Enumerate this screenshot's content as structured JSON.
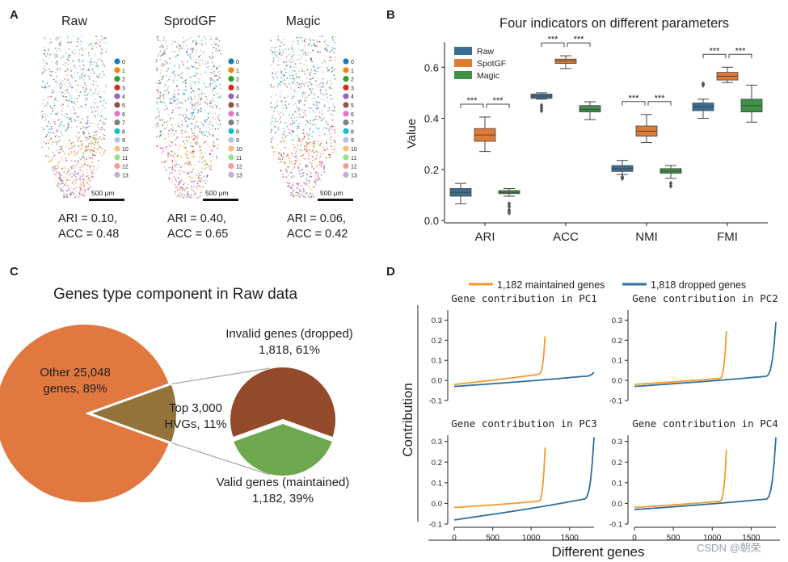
{
  "panels": {
    "A": {
      "letter": "A",
      "images": [
        {
          "title": "Raw",
          "metrics": "ARI = 0.10,\nACC = 0.48",
          "scalebar": "500 μm"
        },
        {
          "title": "SprodGF",
          "metrics": "ARI = 0.40,\nACC = 0.65",
          "scalebar": "500 μm"
        },
        {
          "title": "Magic",
          "metrics": "ARI = 0.06,\nACC = 0.42",
          "scalebar": "500 μm"
        }
      ],
      "cluster_labels": [
        "0",
        "1",
        "2",
        "3",
        "4",
        "5",
        "6",
        "7",
        "8",
        "9",
        "10",
        "11",
        "12",
        "13"
      ],
      "cluster_colors": [
        "#1f77b4",
        "#ff7f0e",
        "#2ca02c",
        "#d62728",
        "#9467bd",
        "#8c564b",
        "#e377c2",
        "#7f7f7f",
        "#17becf",
        "#aec7e8",
        "#ffbb78",
        "#98df8a",
        "#ff9896",
        "#c5b0d5"
      ]
    },
    "B": {
      "letter": "B"
    },
    "C": {
      "letter": "C",
      "title": "Genes type component in Raw data",
      "left_label": "Other 25,048\ngenes, 89%",
      "mid_label": "Top 3,000\nHVGs, 11%",
      "invalid_label": "Invalid genes (dropped)\n1,818, 61%",
      "valid_label": "Valid genes (maintained)\n1,182, 39%"
    },
    "D": {
      "letter": "D",
      "legend": [
        "1,182 maintained genes",
        "1,818 dropped genes"
      ],
      "ylabel": "Contribution",
      "xlabel": "Different genes",
      "subtitles": [
        "Gene contribution in PC1",
        "Gene contribution in PC2",
        "Gene contribution in PC3",
        "Gene contribution in PC4"
      ]
    }
  },
  "watermark": "CSDN @朝荣",
  "chart_data": [
    {
      "type": "box",
      "title": "Four indicators on different parameters",
      "ylabel": "Value",
      "categories": [
        "ARI",
        "ACC",
        "NMI",
        "FMI"
      ],
      "yticks": [
        0.0,
        0.2,
        0.4,
        0.6
      ],
      "ylim": [
        0.0,
        0.68
      ],
      "legend": {
        "position": "top-left"
      },
      "series": [
        {
          "name": "Raw",
          "color": "#3a6f95",
          "boxes": [
            {
              "min": 0.065,
              "q1": 0.095,
              "median": 0.11,
              "q3": 0.125,
              "max": 0.145,
              "outliers": []
            },
            {
              "min": 0.475,
              "q1": 0.478,
              "median": 0.487,
              "q3": 0.495,
              "max": 0.5,
              "outliers": [
                0.43,
                0.44,
                0.45
              ]
            },
            {
              "min": 0.18,
              "q1": 0.192,
              "median": 0.203,
              "q3": 0.215,
              "max": 0.235,
              "outliers": [
                0.165,
                0.17
              ]
            },
            {
              "min": 0.4,
              "q1": 0.43,
              "median": 0.445,
              "q3": 0.46,
              "max": 0.475,
              "outliers": [
                0.53,
                0.535
              ]
            }
          ]
        },
        {
          "name": "SpotGF",
          "color": "#e07b35",
          "boxes": [
            {
              "min": 0.27,
              "q1": 0.31,
              "median": 0.335,
              "q3": 0.36,
              "max": 0.405,
              "outliers": []
            },
            {
              "min": 0.595,
              "q1": 0.615,
              "median": 0.625,
              "q3": 0.632,
              "max": 0.645,
              "outliers": []
            },
            {
              "min": 0.305,
              "q1": 0.33,
              "median": 0.35,
              "q3": 0.37,
              "max": 0.415,
              "outliers": []
            },
            {
              "min": 0.54,
              "q1": 0.55,
              "median": 0.565,
              "q3": 0.58,
              "max": 0.6,
              "outliers": []
            }
          ]
        },
        {
          "name": "Magic",
          "color": "#3d9245",
          "boxes": [
            {
              "min": 0.095,
              "q1": 0.105,
              "median": 0.11,
              "q3": 0.117,
              "max": 0.125,
              "outliers": [
                0.03,
                0.04,
                0.055,
                0.065
              ]
            },
            {
              "min": 0.395,
              "q1": 0.425,
              "median": 0.435,
              "q3": 0.45,
              "max": 0.465,
              "outliers": []
            },
            {
              "min": 0.165,
              "q1": 0.185,
              "median": 0.193,
              "q3": 0.203,
              "max": 0.215,
              "outliers": [
                0.135,
                0.145
              ]
            },
            {
              "min": 0.385,
              "q1": 0.425,
              "median": 0.45,
              "q3": 0.475,
              "max": 0.53,
              "outliers": []
            }
          ]
        }
      ],
      "annotations": [
        "***",
        "***"
      ]
    },
    {
      "type": "pie",
      "title": "Genes type component in Raw data",
      "slices": [
        {
          "label": "Other 25,048 genes",
          "value": 89,
          "color": "#e07840"
        },
        {
          "label": "Top 3,000 HVGs",
          "value": 11,
          "color": "#93733a"
        }
      ]
    },
    {
      "type": "pie",
      "slices": [
        {
          "label": "Invalid genes (dropped)",
          "value": 61,
          "color": "#924a2a"
        },
        {
          "label": "Valid genes (maintained)",
          "value": 39,
          "color": "#6da84e"
        }
      ]
    },
    {
      "type": "line",
      "title": "Gene contribution in PC1",
      "ylim": [
        -0.1,
        0.35
      ],
      "yticks": [
        -0.1,
        0.0,
        0.1,
        0.2,
        0.3
      ],
      "yticklabels": [
        "-0.1",
        "0.0",
        "0.1",
        "0.2",
        "0.3"
      ],
      "xlim": [
        0,
        1818
      ],
      "series": [
        {
          "name": "1,182 maintained genes",
          "color": "#f39a2c",
          "n": 1182,
          "start": -0.02,
          "end": 0.22,
          "bend": 0.03
        },
        {
          "name": "1,818 dropped genes",
          "color": "#2f6f9f",
          "n": 1818,
          "start": -0.03,
          "end": 0.04,
          "bend": 0.02
        }
      ]
    },
    {
      "type": "line",
      "title": "Gene contribution in PC2",
      "ylim": [
        -0.1,
        0.35
      ],
      "yticks": [
        -0.1,
        0.0,
        0.1,
        0.2,
        0.3
      ],
      "yticklabels": [
        "-0.1",
        "0.0",
        "0.1",
        "0.2",
        "0.3"
      ],
      "xlim": [
        0,
        1818
      ],
      "series": [
        {
          "name": "1,182 maintained genes",
          "color": "#f39a2c",
          "n": 1182,
          "start": -0.02,
          "end": 0.245,
          "bend": 0.01
        },
        {
          "name": "1,818 dropped genes",
          "color": "#2f6f9f",
          "n": 1818,
          "start": -0.03,
          "end": 0.29,
          "bend": 0.02
        }
      ]
    },
    {
      "type": "line",
      "title": "Gene contribution in PC3",
      "ylim": [
        -0.1,
        0.33
      ],
      "yticks": [
        -0.1,
        0.0,
        0.1,
        0.2,
        0.3
      ],
      "yticklabels": [
        "-0.1",
        "0.0",
        "0.1",
        "0.2",
        "0.3"
      ],
      "xticks": [
        0,
        500,
        1000,
        1500
      ],
      "xlim": [
        0,
        1818
      ],
      "series": [
        {
          "name": "1,182 maintained genes",
          "color": "#f39a2c",
          "n": 1182,
          "start": -0.02,
          "end": 0.27,
          "bend": 0.01
        },
        {
          "name": "1,818 dropped genes",
          "color": "#2f6f9f",
          "n": 1818,
          "start": -0.08,
          "end": 0.32,
          "bend": 0.02
        }
      ]
    },
    {
      "type": "line",
      "title": "Gene contribution in PC4",
      "ylim": [
        -0.1,
        0.33
      ],
      "yticks": [
        -0.1,
        0.0,
        0.1,
        0.2,
        0.3
      ],
      "yticklabels": [
        "-0.1",
        "0.0",
        "0.1",
        "0.2",
        "0.3"
      ],
      "xticks": [
        0,
        500,
        1000,
        1500
      ],
      "xlim": [
        0,
        1818
      ],
      "series": [
        {
          "name": "1,182 maintained genes",
          "color": "#f39a2c",
          "n": 1182,
          "start": -0.02,
          "end": 0.26,
          "bend": 0.01
        },
        {
          "name": "1,818 dropped genes",
          "color": "#2f6f9f",
          "n": 1818,
          "start": -0.03,
          "end": 0.32,
          "bend": 0.02
        }
      ]
    }
  ]
}
